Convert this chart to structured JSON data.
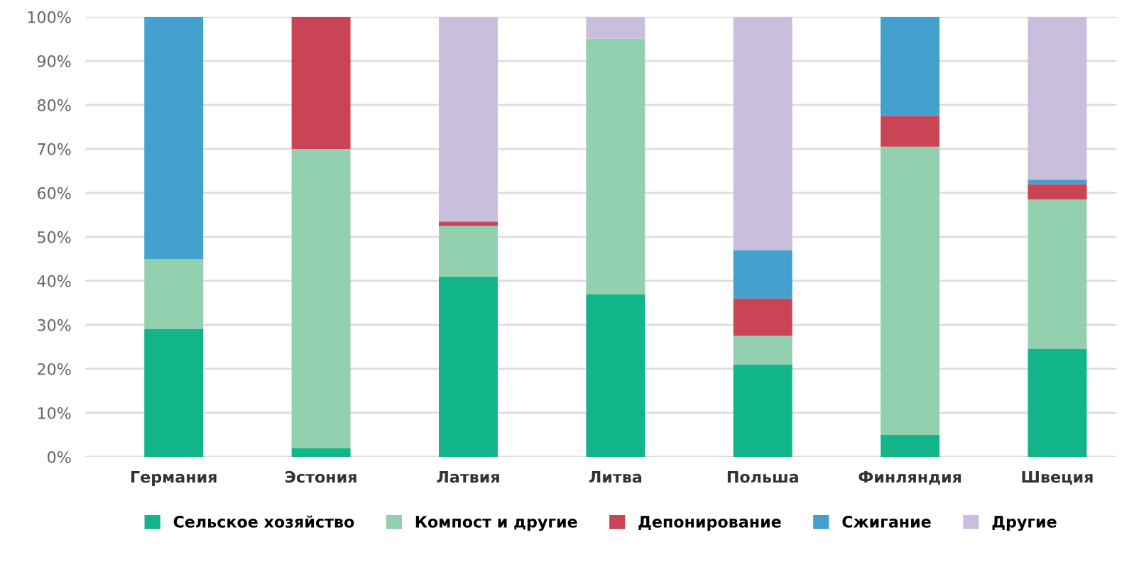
{
  "chart_data": {
    "type": "bar",
    "stacked": true,
    "categories": [
      "Германия",
      "Эстония",
      "Латвия",
      "Литва",
      "Польша",
      "Финляндия",
      "Швеция"
    ],
    "series": [
      {
        "name": "Сельское хозяйство",
        "color": "#12b58a",
        "values": [
          29,
          2,
          41,
          37,
          21,
          5,
          24.5
        ]
      },
      {
        "name": "Компост и другие",
        "color": "#92d0b0",
        "values": [
          16,
          68,
          11.5,
          58,
          6.5,
          65.5,
          34
        ]
      },
      {
        "name": "Депонирование",
        "color": "#c94455",
        "values": [
          0,
          30,
          1,
          0,
          8.5,
          7,
          3.5
        ]
      },
      {
        "name": "Сжигание",
        "color": "#43a0cf",
        "values": [
          55,
          0,
          0,
          0,
          11,
          22.5,
          1
        ]
      },
      {
        "name": "Другие",
        "color": "#c9bfdd",
        "values": [
          0,
          0,
          46.5,
          5,
          53,
          0,
          37
        ]
      }
    ],
    "ylim": [
      0,
      100
    ],
    "yticks": [
      {
        "value": 0,
        "label": "0%"
      },
      {
        "value": 10,
        "label": "10%"
      },
      {
        "value": 20,
        "label": "20%"
      },
      {
        "value": 30,
        "label": "30%"
      },
      {
        "value": 40,
        "label": "40%"
      },
      {
        "value": 50,
        "label": "50%"
      },
      {
        "value": 60,
        "label": "60%"
      },
      {
        "value": 70,
        "label": "70%"
      },
      {
        "value": 80,
        "label": "80%"
      },
      {
        "value": 90,
        "label": "90%"
      },
      {
        "value": 100,
        "label": "100%"
      }
    ],
    "grid": "y",
    "legend": "bottom"
  }
}
